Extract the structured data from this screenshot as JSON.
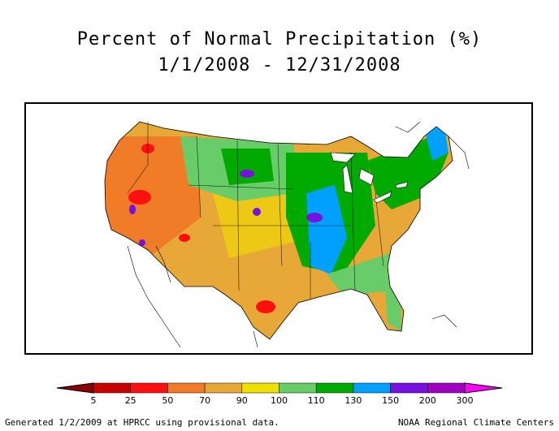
{
  "title": {
    "line1": "Percent of Normal Precipitation (%)",
    "line2": "1/1/2008 - 12/31/2008"
  },
  "legend": {
    "labels": [
      "5",
      "25",
      "50",
      "70",
      "90",
      "100",
      "110",
      "130",
      "150",
      "200",
      "300"
    ],
    "colors": [
      "#8b0000",
      "#c80000",
      "#ff1010",
      "#f07c28",
      "#e8a838",
      "#f0e000",
      "#68cc68",
      "#00aa00",
      "#00a0ff",
      "#7810e0",
      "#a000c0",
      "#ff00ff"
    ]
  },
  "footer": {
    "left": "Generated 1/2/2009 at HPRCC using provisional data.",
    "right": "NOAA Regional Climate Centers"
  }
}
